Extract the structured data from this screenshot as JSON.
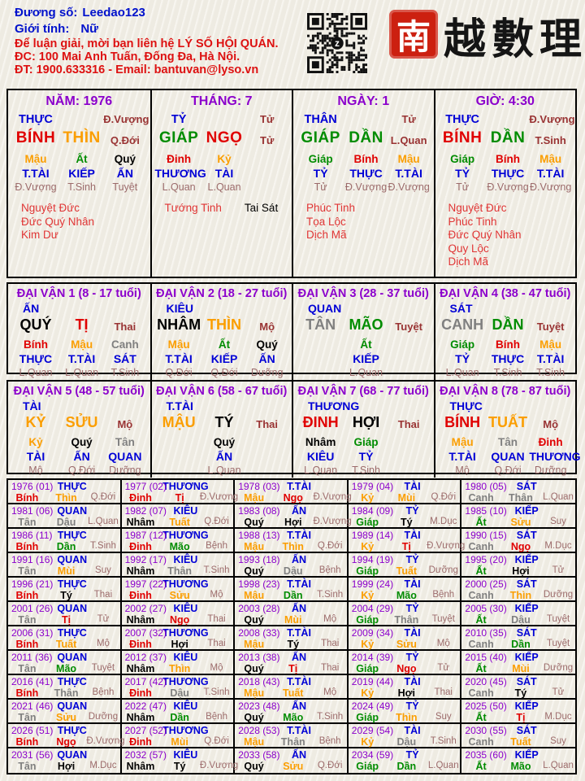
{
  "header": {
    "person_label": "Đương số:",
    "person_value": "Leedao123",
    "gender_label": "Giới tính:",
    "gender_value": "Nữ",
    "contact_lines": [
      "Để luận giải, mời bạn liên hệ LÝ SỐ HỘI QUÁN.",
      "ĐC: 100 Mai Anh Tuấn, Đống Đa, Hà Nội.",
      "ĐT: 1900.633316 - Email: bantuvan@lyso.vn"
    ],
    "brand": {
      "seal_char": "南",
      "calligraphy": "越 數 理"
    }
  },
  "colors": {
    "page_bg": "#f2efe6",
    "border": "#000000",
    "purple": "#8b00cc",
    "blue": "#0000d6",
    "header_blue": "#0011cc",
    "header_red": "#dd1111",
    "dark_red": "#993333",
    "stage_rose": "#9c6b6b",
    "star_red": "#e03535",
    "seal_red": "#cc2010",
    "ink": "#151515"
  },
  "element_colors": {
    "wood": "#008c00",
    "fire": "#e00000",
    "earth": "#fb9e00",
    "metal": "#808080",
    "water": "#000000"
  },
  "star_colors": {
    "red": "#e03535",
    "black": "#000000"
  },
  "element_of": {
    "giáp": "wood",
    "ất": "wood",
    "bính": "fire",
    "đinh": "fire",
    "mậu": "earth",
    "kỷ": "earth",
    "canh": "metal",
    "tân": "metal",
    "nhâm": "water",
    "quý": "water",
    "tý": "water",
    "sửu": "earth",
    "dần": "wood",
    "mão": "wood",
    "thìn": "earth",
    "tị": "fire",
    "ngọ": "fire",
    "mùi": "earth",
    "thân": "metal",
    "dậu": "metal",
    "tuất": "earth",
    "hợi": "water"
  },
  "pillars": [
    {
      "key": "year",
      "title": "NĂM: 1976",
      "top_left": "THỰC",
      "top_right": "Đ.Vượng",
      "stem": "BÍNH",
      "branch": "THÌN",
      "mid_right": "Q.Đới",
      "hidden": [
        {
          "c": 0,
          "s": "Mậu",
          "g": "T.TÀI",
          "st": "Đ.Vượng"
        },
        {
          "c": 1,
          "s": "Ất",
          "g": "KIẾP",
          "st": "T.Sinh"
        },
        {
          "c": 2,
          "s": "Quý",
          "g": "ẤN",
          "st": "Tuyệt"
        }
      ],
      "stars": [
        [
          {
            "t": "Nguyệt Đức"
          }
        ],
        [
          {
            "t": "Đức Quý Nhân"
          }
        ],
        [
          {
            "t": "Kim Dư"
          }
        ]
      ]
    },
    {
      "key": "month",
      "title": "THÁNG: 7",
      "top_left": "TỶ",
      "top_right": "Tử",
      "stem": "GIÁP",
      "branch": "NGỌ",
      "mid_right": "Tử",
      "hidden": [
        {
          "c": 0,
          "s": "Đinh",
          "g": "THƯƠNG",
          "st": "L.Quan"
        },
        {
          "c": 1,
          "s": "Kỷ",
          "g": "TÀI",
          "st": "L.Quan"
        }
      ],
      "stars": [
        [
          {
            "t": "Tướng Tinh"
          },
          {
            "t": "Tai Sát",
            "c": "black"
          }
        ]
      ]
    },
    {
      "key": "day",
      "title": "NGÀY: 1",
      "top_left": "THÂN",
      "top_right": "Tử",
      "stem": "GIÁP",
      "branch": "DẦN",
      "mid_right": "L.Quan",
      "hidden": [
        {
          "c": 0,
          "s": "Giáp",
          "g": "TỶ",
          "st": "Tử"
        },
        {
          "c": 1,
          "s": "Bính",
          "g": "THỰC",
          "st": "Đ.Vượng"
        },
        {
          "c": 2,
          "s": "Mậu",
          "g": "T.TÀI",
          "st": "Đ.Vượng"
        }
      ],
      "stars": [
        [
          {
            "t": "Phúc Tinh"
          }
        ],
        [
          {
            "t": "Tọa Lộc"
          }
        ],
        [
          {
            "t": "Dịch Mã"
          }
        ]
      ]
    },
    {
      "key": "hour",
      "title": "GIỜ: 4:30",
      "top_left": "THỰC",
      "top_right": "Đ.Vượng",
      "stem": "BÍNH",
      "branch": "DẦN",
      "mid_right": "T.Sinh",
      "hidden": [
        {
          "c": 0,
          "s": "Giáp",
          "g": "TỶ",
          "st": "Tử"
        },
        {
          "c": 1,
          "s": "Bính",
          "g": "THỰC",
          "st": "Đ.Vượng"
        },
        {
          "c": 2,
          "s": "Mậu",
          "g": "T.TÀI",
          "st": "Đ.Vượng"
        }
      ],
      "stars": [
        [
          {
            "t": "Nguyệt Đức"
          }
        ],
        [
          {
            "t": "Phúc Tinh"
          }
        ],
        [
          {
            "t": "Đức Quý Nhân"
          }
        ],
        [
          {
            "t": "Quy Lộc"
          }
        ],
        [
          {
            "t": "Dịch Mã"
          }
        ]
      ]
    }
  ],
  "dai_van": [
    {
      "title": "ĐẠI VẬN 1 (8 - 17 tuổi)",
      "god": "ẤN",
      "stem": "QUÝ",
      "branch": "TỊ",
      "stage": "Thai",
      "hidden": [
        {
          "c": 0,
          "s": "Bính",
          "g": "THỰC",
          "st": "L.Quan"
        },
        {
          "c": 1,
          "s": "Mậu",
          "g": "T.TÀI",
          "st": "L.Quan"
        },
        {
          "c": 2,
          "s": "Canh",
          "g": "SÁT",
          "st": "T.Sinh"
        }
      ]
    },
    {
      "title": "ĐẠI VẬN 2 (18 - 27 tuổi)",
      "god": "KIÊU",
      "stem": "NHÂM",
      "branch": "THÌN",
      "stage": "Mộ",
      "hidden": [
        {
          "c": 0,
          "s": "Mậu",
          "g": "T.TÀI",
          "st": "Q.Đới"
        },
        {
          "c": 1,
          "s": "Ất",
          "g": "KIẾP",
          "st": "Q.Đới"
        },
        {
          "c": 2,
          "s": "Quý",
          "g": "ẤN",
          "st": "Dưỡng"
        }
      ]
    },
    {
      "title": "ĐẠI VẬN 3 (28 - 37 tuổi)",
      "god": "QUAN",
      "stem": "TÂN",
      "branch": "MÃO",
      "stage": "Tuyệt",
      "hidden": [
        {
          "c": 1,
          "s": "Ất",
          "g": "KIẾP",
          "st": "L.Quan"
        }
      ]
    },
    {
      "title": "ĐẠI VẬN 4 (38 - 47 tuổi)",
      "god": "SÁT",
      "stem": "CANH",
      "branch": "DẦN",
      "stage": "Tuyệt",
      "hidden": [
        {
          "c": 0,
          "s": "Giáp",
          "g": "TỶ",
          "st": "L.Quan"
        },
        {
          "c": 1,
          "s": "Bính",
          "g": "THỰC",
          "st": "T.Sinh"
        },
        {
          "c": 2,
          "s": "Mậu",
          "g": "T.TÀI",
          "st": "T.Sinh"
        }
      ]
    },
    {
      "title": "ĐẠI VẬN 5 (48 - 57 tuổi)",
      "god": "TÀI",
      "stem": "KỶ",
      "branch": "SỬU",
      "stage": "Mộ",
      "hidden": [
        {
          "c": 0,
          "s": "Kỷ",
          "g": "TÀI",
          "st": "Mộ"
        },
        {
          "c": 1,
          "s": "Quý",
          "g": "ẤN",
          "st": "Q.Đới"
        },
        {
          "c": 2,
          "s": "Tân",
          "g": "QUAN",
          "st": "Dưỡng"
        }
      ]
    },
    {
      "title": "ĐẠI VẬN 6 (58 - 67 tuổi)",
      "god": "T.TÀI",
      "stem": "MẬU",
      "branch": "TÝ",
      "stage": "Thai",
      "hidden": [
        {
          "c": 1,
          "s": "Quý",
          "g": "ẤN",
          "st": "L.Quan"
        }
      ]
    },
    {
      "title": "ĐẠI VẬN 7 (68 - 77 tuổi)",
      "god": "THƯƠNG",
      "stem": "ĐINH",
      "branch": "HỢI",
      "stage": "Thai",
      "hidden": [
        {
          "c": 0,
          "s": "Nhâm",
          "g": "KIÊU",
          "st": "L.Quan"
        },
        {
          "c": 1,
          "s": "Giáp",
          "g": "TỶ",
          "st": "T.Sinh"
        }
      ]
    },
    {
      "title": "ĐẠI VẬN 8 (78 - 87 tuổi)",
      "god": "THỰC",
      "stem": "BÍNH",
      "branch": "TUẤT",
      "stage": "Mộ",
      "hidden": [
        {
          "c": 0,
          "s": "Mậu",
          "g": "T.TÀI",
          "st": "Mộ"
        },
        {
          "c": 1,
          "s": "Tân",
          "g": "QUAN",
          "st": "Q.Đới"
        },
        {
          "c": 2,
          "s": "Đinh",
          "g": "THƯƠNG",
          "st": "Dưỡng"
        }
      ]
    }
  ],
  "years": [
    {
      "y": "1976 (01)",
      "g": "THỰC",
      "s": "Bính",
      "b": "Thìn",
      "st": "Q.Đới"
    },
    {
      "y": "1977 (02)",
      "g": "THƯƠNG",
      "s": "Đinh",
      "b": "Tị",
      "st": "Đ.Vượng"
    },
    {
      "y": "1978 (03)",
      "g": "T.TÀI",
      "s": "Mậu",
      "b": "Ngọ",
      "st": "Đ.Vượng"
    },
    {
      "y": "1979 (04)",
      "g": "TÀI",
      "s": "Kỷ",
      "b": "Mùi",
      "st": "Q.Đới"
    },
    {
      "y": "1980 (05)",
      "g": "SÁT",
      "s": "Canh",
      "b": "Thân",
      "st": "L.Quan"
    },
    {
      "y": "1981 (06)",
      "g": "QUAN",
      "s": "Tân",
      "b": "Dậu",
      "st": "L.Quan"
    },
    {
      "y": "1982 (07)",
      "g": "KIÊU",
      "s": "Nhâm",
      "b": "Tuất",
      "st": "Q.Đới"
    },
    {
      "y": "1983 (08)",
      "g": "ẤN",
      "s": "Quý",
      "b": "Hợi",
      "st": "Đ.Vượng"
    },
    {
      "y": "1984 (09)",
      "g": "TỶ",
      "s": "Giáp",
      "b": "Tý",
      "st": "M.Dục"
    },
    {
      "y": "1985 (10)",
      "g": "KIẾP",
      "s": "Ất",
      "b": "Sửu",
      "st": "Suy"
    },
    {
      "y": "1986 (11)",
      "g": "THỰC",
      "s": "Bính",
      "b": "Dần",
      "st": "T.Sinh"
    },
    {
      "y": "1987 (12)",
      "g": "THƯƠNG",
      "s": "Đinh",
      "b": "Mão",
      "st": "Bệnh"
    },
    {
      "y": "1988 (13)",
      "g": "T.TÀI",
      "s": "Mậu",
      "b": "Thìn",
      "st": "Q.Đới"
    },
    {
      "y": "1989 (14)",
      "g": "TÀI",
      "s": "Kỷ",
      "b": "Tị",
      "st": "Đ.Vượng"
    },
    {
      "y": "1990 (15)",
      "g": "SÁT",
      "s": "Canh",
      "b": "Ngọ",
      "st": "M.Dục"
    },
    {
      "y": "1991 (16)",
      "g": "QUAN",
      "s": "Tân",
      "b": "Mùi",
      "st": "Suy"
    },
    {
      "y": "1992 (17)",
      "g": "KIÊU",
      "s": "Nhâm",
      "b": "Thân",
      "st": "T.Sinh"
    },
    {
      "y": "1993 (18)",
      "g": "ẤN",
      "s": "Quý",
      "b": "Dậu",
      "st": "Bệnh"
    },
    {
      "y": "1994 (19)",
      "g": "TỶ",
      "s": "Giáp",
      "b": "Tuất",
      "st": "Dưỡng"
    },
    {
      "y": "1995 (20)",
      "g": "KIẾP",
      "s": "Ất",
      "b": "Hợi",
      "st": "Tử"
    },
    {
      "y": "1996 (21)",
      "g": "THỰC",
      "s": "Bính",
      "b": "Tý",
      "st": "Thai"
    },
    {
      "y": "1997 (22)",
      "g": "THƯƠNG",
      "s": "Đinh",
      "b": "Sửu",
      "st": "Mộ"
    },
    {
      "y": "1998 (23)",
      "g": "T.TÀI",
      "s": "Mậu",
      "b": "Dần",
      "st": "T.Sinh"
    },
    {
      "y": "1999 (24)",
      "g": "TÀI",
      "s": "Kỷ",
      "b": "Mão",
      "st": "Bệnh"
    },
    {
      "y": "2000 (25)",
      "g": "SÁT",
      "s": "Canh",
      "b": "Thìn",
      "st": "Dưỡng"
    },
    {
      "y": "2001 (26)",
      "g": "QUAN",
      "s": "Tân",
      "b": "Tị",
      "st": "Tử"
    },
    {
      "y": "2002 (27)",
      "g": "KIÊU",
      "s": "Nhâm",
      "b": "Ngọ",
      "st": "Thai"
    },
    {
      "y": "2003 (28)",
      "g": "ẤN",
      "s": "Quý",
      "b": "Mùi",
      "st": "Mộ"
    },
    {
      "y": "2004 (29)",
      "g": "TỶ",
      "s": "Giáp",
      "b": "Thân",
      "st": "Tuyệt"
    },
    {
      "y": "2005 (30)",
      "g": "KIẾP",
      "s": "Ất",
      "b": "Dậu",
      "st": "Tuyệt"
    },
    {
      "y": "2006 (31)",
      "g": "THỰC",
      "s": "Bính",
      "b": "Tuất",
      "st": "Mộ"
    },
    {
      "y": "2007 (32)",
      "g": "THƯƠNG",
      "s": "Đinh",
      "b": "Hợi",
      "st": "Thai"
    },
    {
      "y": "2008 (33)",
      "g": "T.TÀI",
      "s": "Mậu",
      "b": "Tý",
      "st": "Thai"
    },
    {
      "y": "2009 (34)",
      "g": "TÀI",
      "s": "Kỷ",
      "b": "Sửu",
      "st": "Mộ"
    },
    {
      "y": "2010 (35)",
      "g": "SÁT",
      "s": "Canh",
      "b": "Dần",
      "st": "Tuyệt"
    },
    {
      "y": "2011 (36)",
      "g": "QUAN",
      "s": "Tân",
      "b": "Mão",
      "st": "Tuyệt"
    },
    {
      "y": "2012 (37)",
      "g": "KIÊU",
      "s": "Nhâm",
      "b": "Thìn",
      "st": "Mộ"
    },
    {
      "y": "2013 (38)",
      "g": "ẤN",
      "s": "Quý",
      "b": "Tị",
      "st": "Thai"
    },
    {
      "y": "2014 (39)",
      "g": "TỶ",
      "s": "Giáp",
      "b": "Ngọ",
      "st": "Tử"
    },
    {
      "y": "2015 (40)",
      "g": "KIẾP",
      "s": "Ất",
      "b": "Mùi",
      "st": "Dưỡng"
    },
    {
      "y": "2016 (41)",
      "g": "THỰC",
      "s": "Bính",
      "b": "Thân",
      "st": "Bệnh"
    },
    {
      "y": "2017 (42)",
      "g": "THƯƠNG",
      "s": "Đinh",
      "b": "Dậu",
      "st": "T.Sinh"
    },
    {
      "y": "2018 (43)",
      "g": "T.TÀI",
      "s": "Mậu",
      "b": "Tuất",
      "st": "Mộ"
    },
    {
      "y": "2019 (44)",
      "g": "TÀI",
      "s": "Kỷ",
      "b": "Hợi",
      "st": "Thai"
    },
    {
      "y": "2020 (45)",
      "g": "SÁT",
      "s": "Canh",
      "b": "Tý",
      "st": "Tử"
    },
    {
      "y": "2021 (46)",
      "g": "QUAN",
      "s": "Tân",
      "b": "Sửu",
      "st": "Dưỡng"
    },
    {
      "y": "2022 (47)",
      "g": "KIÊU",
      "s": "Nhâm",
      "b": "Dần",
      "st": "Bệnh"
    },
    {
      "y": "2023 (48)",
      "g": "ẤN",
      "s": "Quý",
      "b": "Mão",
      "st": "T.Sinh"
    },
    {
      "y": "2024 (49)",
      "g": "TỶ",
      "s": "Giáp",
      "b": "Thìn",
      "st": "Suy"
    },
    {
      "y": "2025 (50)",
      "g": "KIẾP",
      "s": "Ất",
      "b": "Tị",
      "st": "M.Dục"
    },
    {
      "y": "2026 (51)",
      "g": "THỰC",
      "s": "Bính",
      "b": "Ngọ",
      "st": "Đ.Vượng"
    },
    {
      "y": "2027 (52)",
      "g": "THƯƠNG",
      "s": "Đinh",
      "b": "Mùi",
      "st": "Q.Đới"
    },
    {
      "y": "2028 (53)",
      "g": "T.TÀI",
      "s": "Mậu",
      "b": "Thân",
      "st": "Bệnh"
    },
    {
      "y": "2029 (54)",
      "g": "TÀI",
      "s": "Kỷ",
      "b": "Dậu",
      "st": "T.Sinh"
    },
    {
      "y": "2030 (55)",
      "g": "SÁT",
      "s": "Canh",
      "b": "Tuất",
      "st": "Suy"
    },
    {
      "y": "2031 (56)",
      "g": "QUAN",
      "s": "Tân",
      "b": "Hợi",
      "st": "M.Dục"
    },
    {
      "y": "2032 (57)",
      "g": "KIÊU",
      "s": "Nhâm",
      "b": "Tý",
      "st": "Đ.Vượng"
    },
    {
      "y": "2033 (58)",
      "g": "ẤN",
      "s": "Quý",
      "b": "Sửu",
      "st": "Q.Đới"
    },
    {
      "y": "2034 (59)",
      "g": "TỶ",
      "s": "Giáp",
      "b": "Dần",
      "st": "L.Quan"
    },
    {
      "y": "2035 (60)",
      "g": "KIẾP",
      "s": "Ất",
      "b": "Mão",
      "st": "L.Quan"
    }
  ]
}
